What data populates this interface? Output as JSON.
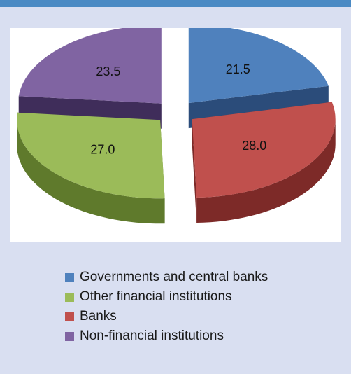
{
  "chart_data": {
    "type": "pie",
    "style": "3d-exploded",
    "slices": [
      {
        "name": "Governments and central banks",
        "value": 21.5,
        "label": "21.5",
        "color": "#4f81bd",
        "side_color": "#2b4c7a"
      },
      {
        "name": "Banks",
        "value": 28.0,
        "label": "28.0",
        "color": "#c0504d",
        "side_color": "#7d2a28"
      },
      {
        "name": "Other financial institutions",
        "value": 27.0,
        "label": "27.0",
        "color": "#9bbb59",
        "side_color": "#5f7a2c"
      },
      {
        "name": "Non-financial institutions",
        "value": 23.5,
        "label": "23.5",
        "color": "#8064a2",
        "side_color": "#3f2d5a"
      }
    ],
    "legend": {
      "placement": "bottom",
      "items": [
        {
          "label": "Governments and central banks",
          "color": "#4f81bd"
        },
        {
          "label": "Other financial institutions",
          "color": "#9bbb59"
        },
        {
          "label": "Banks",
          "color": "#c0504d"
        },
        {
          "label": "Non-financial institutions",
          "color": "#8064a2"
        }
      ]
    }
  },
  "colors": {
    "background": "#d9dff1",
    "panel": "#ffffff",
    "top_bar": "#4a8ac4"
  }
}
